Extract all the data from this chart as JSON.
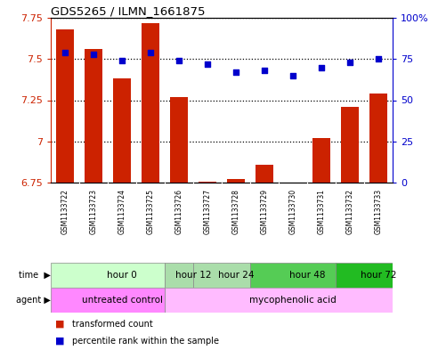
{
  "title": "GDS5265 / ILMN_1661875",
  "samples": [
    "GSM1133722",
    "GSM1133723",
    "GSM1133724",
    "GSM1133725",
    "GSM1133726",
    "GSM1133727",
    "GSM1133728",
    "GSM1133729",
    "GSM1133730",
    "GSM1133731",
    "GSM1133732",
    "GSM1133733"
  ],
  "bar_values": [
    7.68,
    7.56,
    7.38,
    7.72,
    7.27,
    6.755,
    6.77,
    6.86,
    6.75,
    7.02,
    7.21,
    7.29
  ],
  "scatter_values": [
    79,
    78,
    74,
    79,
    74,
    72,
    67,
    68,
    65,
    70,
    73,
    75
  ],
  "bar_color": "#cc2200",
  "scatter_color": "#0000cc",
  "ymin": 6.75,
  "ymax": 7.75,
  "y2min": 0,
  "y2max": 100,
  "yticks_left": [
    6.75,
    7.0,
    7.25,
    7.5,
    7.75
  ],
  "ytick_labels_left": [
    "6.75",
    "7",
    "7.25",
    "7.5",
    "7.75"
  ],
  "yticks_right": [
    0,
    25,
    50,
    75,
    100
  ],
  "ytick_labels_right": [
    "0",
    "25",
    "50",
    "75",
    "100%"
  ],
  "hlines": [
    7.0,
    7.25,
    7.5,
    7.75
  ],
  "time_groups": [
    {
      "label": "hour 0",
      "start": 0,
      "end": 4,
      "color": "#ccffcc"
    },
    {
      "label": "hour 12",
      "start": 4,
      "end": 5,
      "color": "#aaddaa"
    },
    {
      "label": "hour 24",
      "start": 5,
      "end": 7,
      "color": "#aaddaa"
    },
    {
      "label": "hour 48",
      "start": 7,
      "end": 10,
      "color": "#55cc55"
    },
    {
      "label": "hour 72",
      "start": 10,
      "end": 12,
      "color": "#22bb22"
    }
  ],
  "agent_groups": [
    {
      "label": "untreated control",
      "start": 0,
      "end": 4,
      "color": "#ff88ff"
    },
    {
      "label": "mycophenolic acid",
      "start": 4,
      "end": 12,
      "color": "#ffbbff"
    }
  ],
  "left_tick_color": "#cc2200",
  "right_tick_color": "#0000cc",
  "xtick_bg_color": "#cccccc",
  "n_samples": 12,
  "fig_width": 4.83,
  "fig_height": 3.93,
  "dpi": 100
}
